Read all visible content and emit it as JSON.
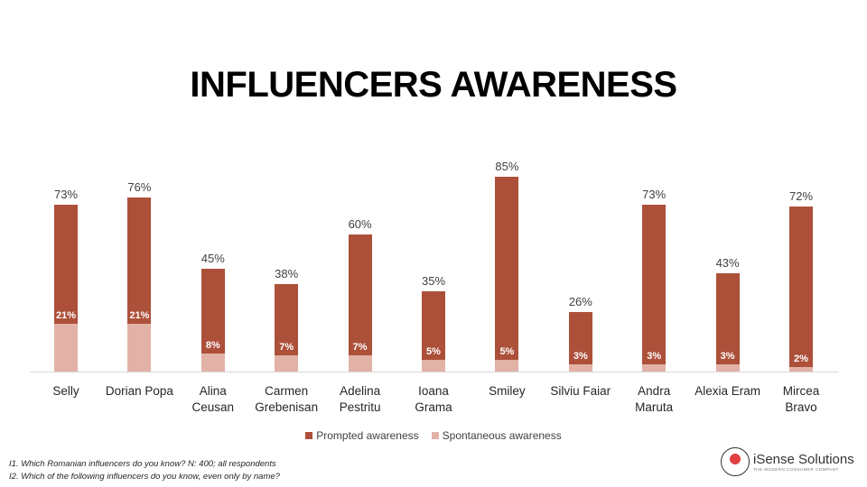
{
  "slide": {
    "title": "INFLUENCERS AWARENESS",
    "footnotes": [
      "I1. Which Romanian influencers do you know? N: 400; all respondents",
      "I2. Which of the following influencers do you know, even only by name?"
    ],
    "logo": {
      "name": "iSense Solutions",
      "tagline": "THE MODERN CONSUMER COMPANY"
    }
  },
  "colors": {
    "prompted": "#ad503a",
    "spontaneous": "#e2b2a7"
  },
  "chart_data": {
    "type": "bar",
    "stacked": false,
    "overlapped": true,
    "title": "INFLUENCERS AWARENESS",
    "xlabel": "",
    "ylabel": "",
    "ylim": [
      0,
      100
    ],
    "grid": false,
    "legend_position": "bottom",
    "categories": [
      "Selly",
      "Dorian Popa",
      "Alina Ceusan",
      "Carmen Grebenisan",
      "Adelina Pestritu",
      "Ioana Grama",
      "Smiley",
      "Silviu Faiar",
      "Andra Maruta",
      "Alexia Eram",
      "Mircea Bravo"
    ],
    "category_lines": [
      [
        "Selly"
      ],
      [
        "Dorian Popa"
      ],
      [
        "Alina",
        "Ceusan"
      ],
      [
        "Carmen",
        "Grebenisan"
      ],
      [
        "Adelina",
        "Pestritu"
      ],
      [
        "Ioana",
        "Grama"
      ],
      [
        "Smiley"
      ],
      [
        "Silviu Faiar"
      ],
      [
        "Andra",
        "Maruta"
      ],
      [
        "Alexia Eram"
      ],
      [
        "Mircea",
        "Bravo"
      ]
    ],
    "series": [
      {
        "name": "Prompted awareness",
        "values": [
          73,
          76,
          45,
          38,
          60,
          35,
          85,
          26,
          73,
          43,
          72
        ],
        "labels": [
          "73%",
          "76%",
          "45%",
          "38%",
          "60%",
          "35%",
          "85%",
          "26%",
          "73%",
          "43%",
          "72%"
        ]
      },
      {
        "name": "Spontaneous awareness",
        "values": [
          21,
          21,
          8,
          7,
          7,
          5,
          5,
          3,
          3,
          3,
          2
        ],
        "labels": [
          "21%",
          "21%",
          "8%",
          "7%",
          "7%",
          "5%",
          "5%",
          "3%",
          "3%",
          "3%",
          "2%"
        ]
      }
    ]
  }
}
